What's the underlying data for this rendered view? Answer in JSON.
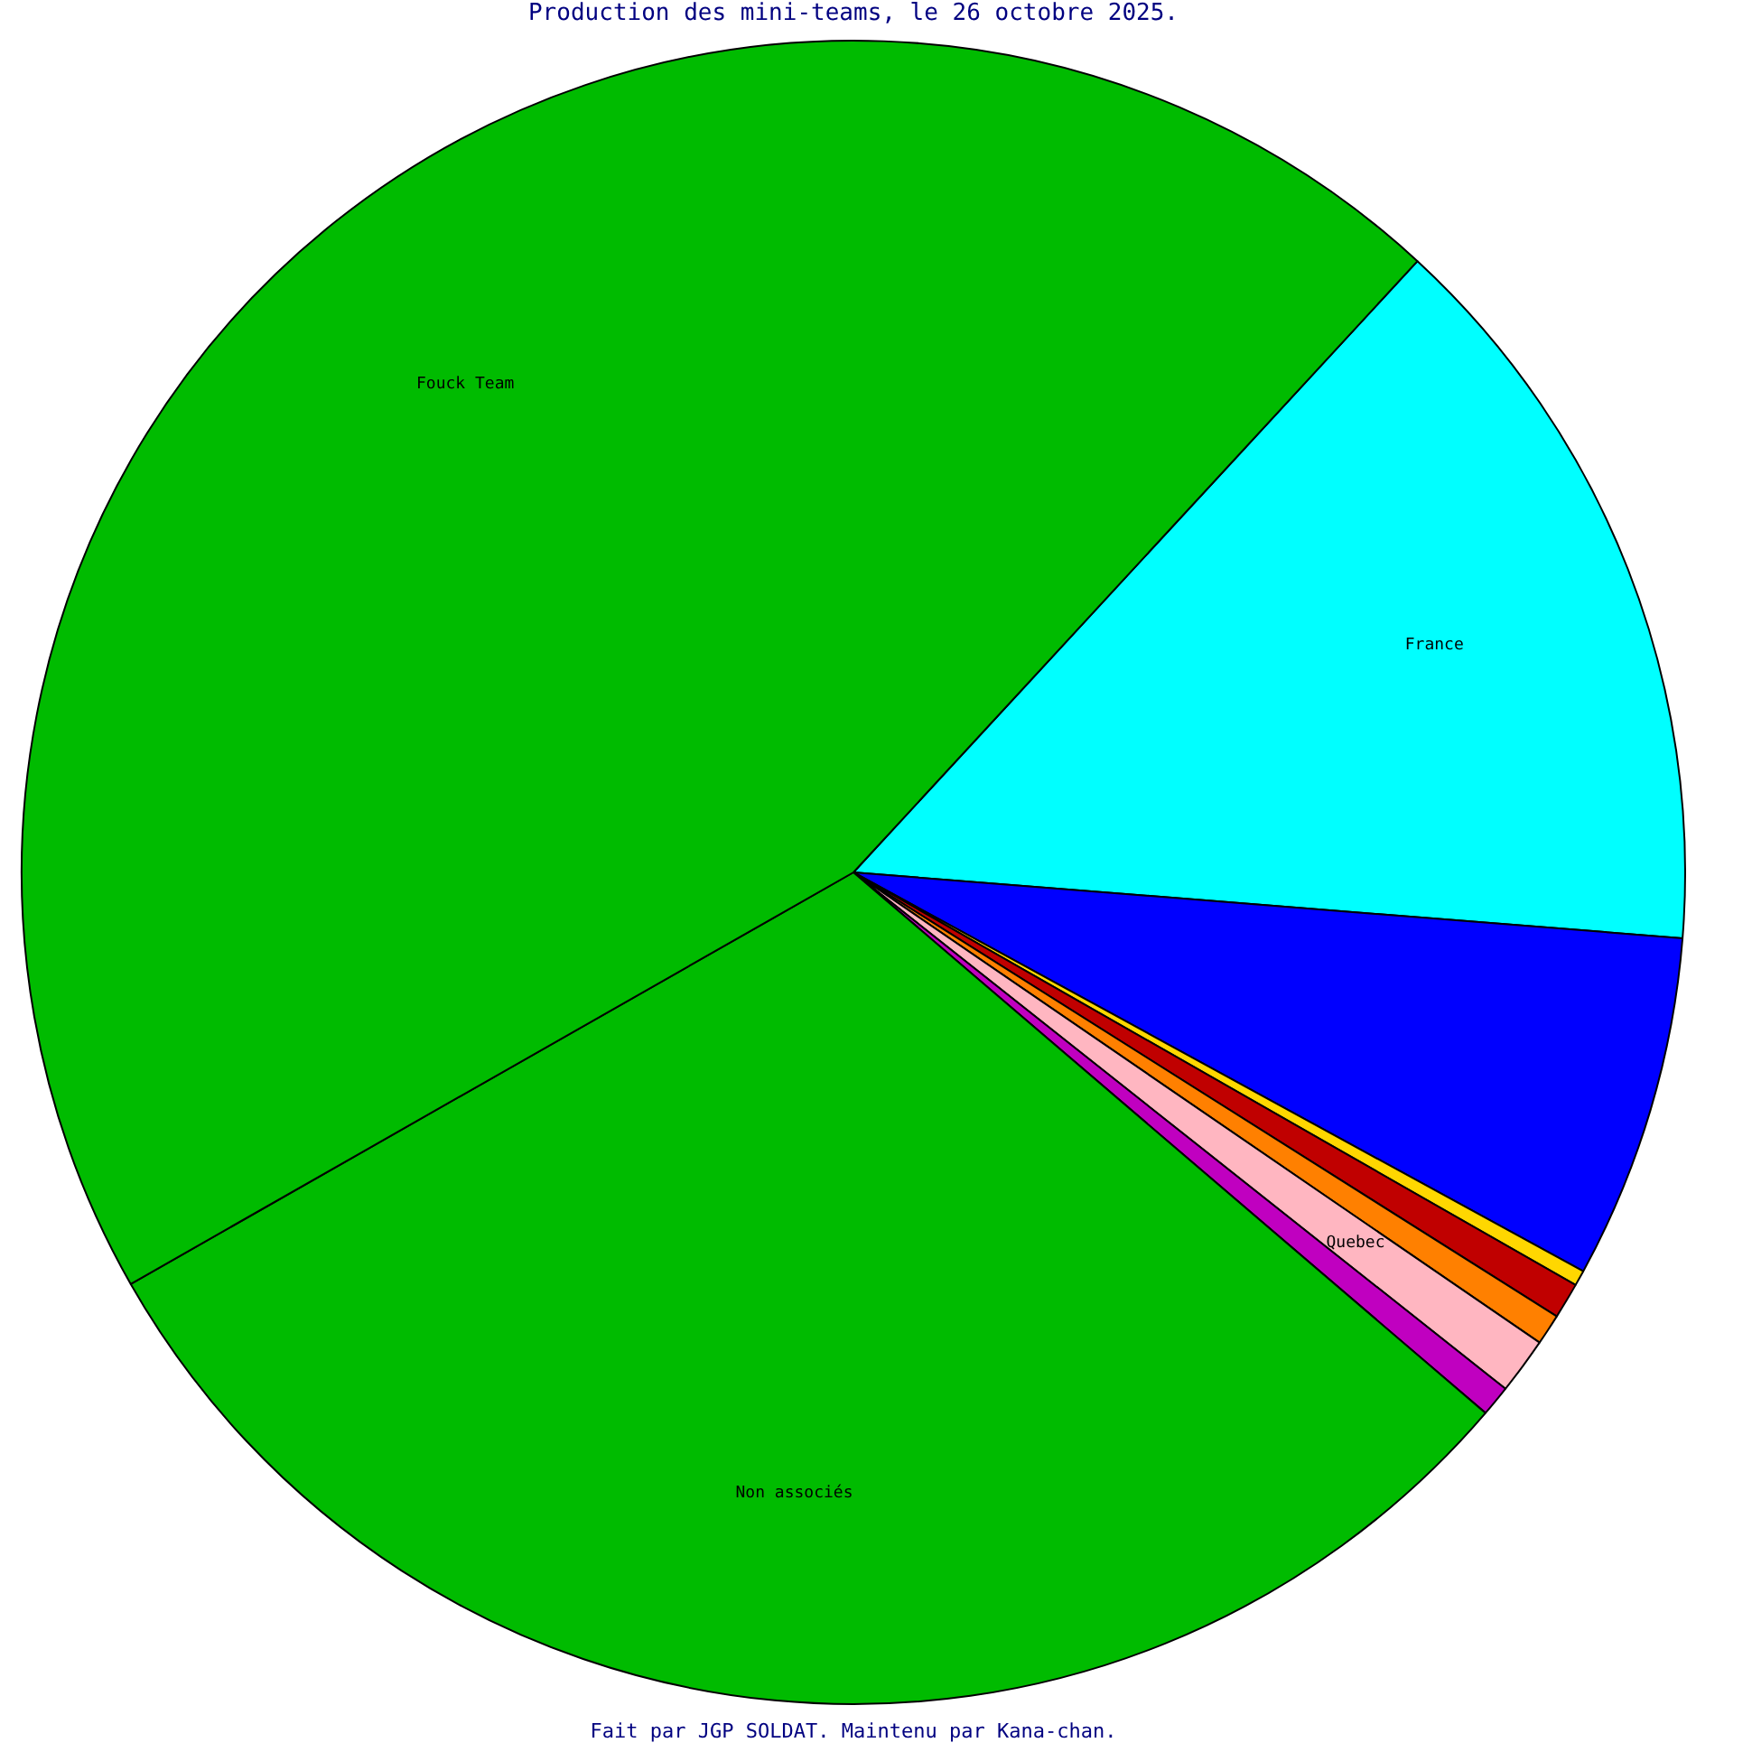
{
  "chart_data": {
    "type": "pie",
    "title": "Production des mini-teams, le 26 octobre 2025.",
    "categories": [
      "France",
      null,
      null,
      null,
      null,
      "Quebec",
      null,
      "Non associés",
      "Fouck Team"
    ],
    "values": [
      14.4,
      6.7,
      0.3,
      0.7,
      0.6,
      1.1,
      0.6,
      30.5,
      45.1
    ],
    "colors": [
      "#00ffff",
      "#0000ff",
      "#ffd700",
      "#c00000",
      "#ff8000",
      "#ffb6c1",
      "#c000c0",
      "#00bb00",
      "#00bb00"
    ],
    "annotations": [
      "Fait par JGP SOLDAT. Maintenu par Kana-chan."
    ]
  }
}
